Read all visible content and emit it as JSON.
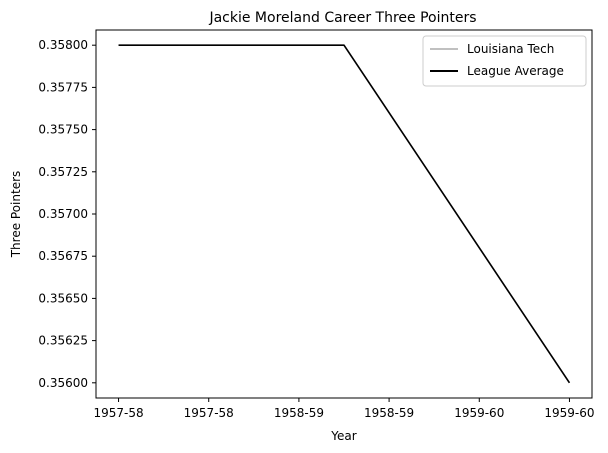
{
  "chart_data": {
    "type": "line",
    "title": "Jackie Moreland Career Three Pointers",
    "xlabel": "Year",
    "ylabel": "Three Pointers",
    "x": [
      0,
      1,
      2
    ],
    "xlim": [
      -0.1,
      2.1
    ],
    "ylim": [
      0.35591,
      0.35809
    ],
    "xticks": [
      0,
      0.4,
      0.8,
      1.2,
      1.6,
      2.0
    ],
    "xtick_labels": [
      "1957-58",
      "1957-58",
      "1958-59",
      "1958-59",
      "1959-60",
      "1959-60"
    ],
    "yticks": [
      0.356,
      0.35625,
      0.3565,
      0.35675,
      0.357,
      0.35725,
      0.3575,
      0.35775,
      0.358
    ],
    "ytick_labels": [
      "0.35600",
      "0.35625",
      "0.35650",
      "0.35675",
      "0.35700",
      "0.35725",
      "0.35750",
      "0.35775",
      "0.35800"
    ],
    "grid": false,
    "legend_position": "top-right",
    "series": [
      {
        "name": "Louisiana Tech",
        "color": "#c0c0c0",
        "values": [
          0.358,
          0.358,
          0.356
        ]
      },
      {
        "name": "League Average",
        "color": "#000000",
        "values": [
          0.358,
          0.358,
          0.356
        ]
      }
    ]
  }
}
